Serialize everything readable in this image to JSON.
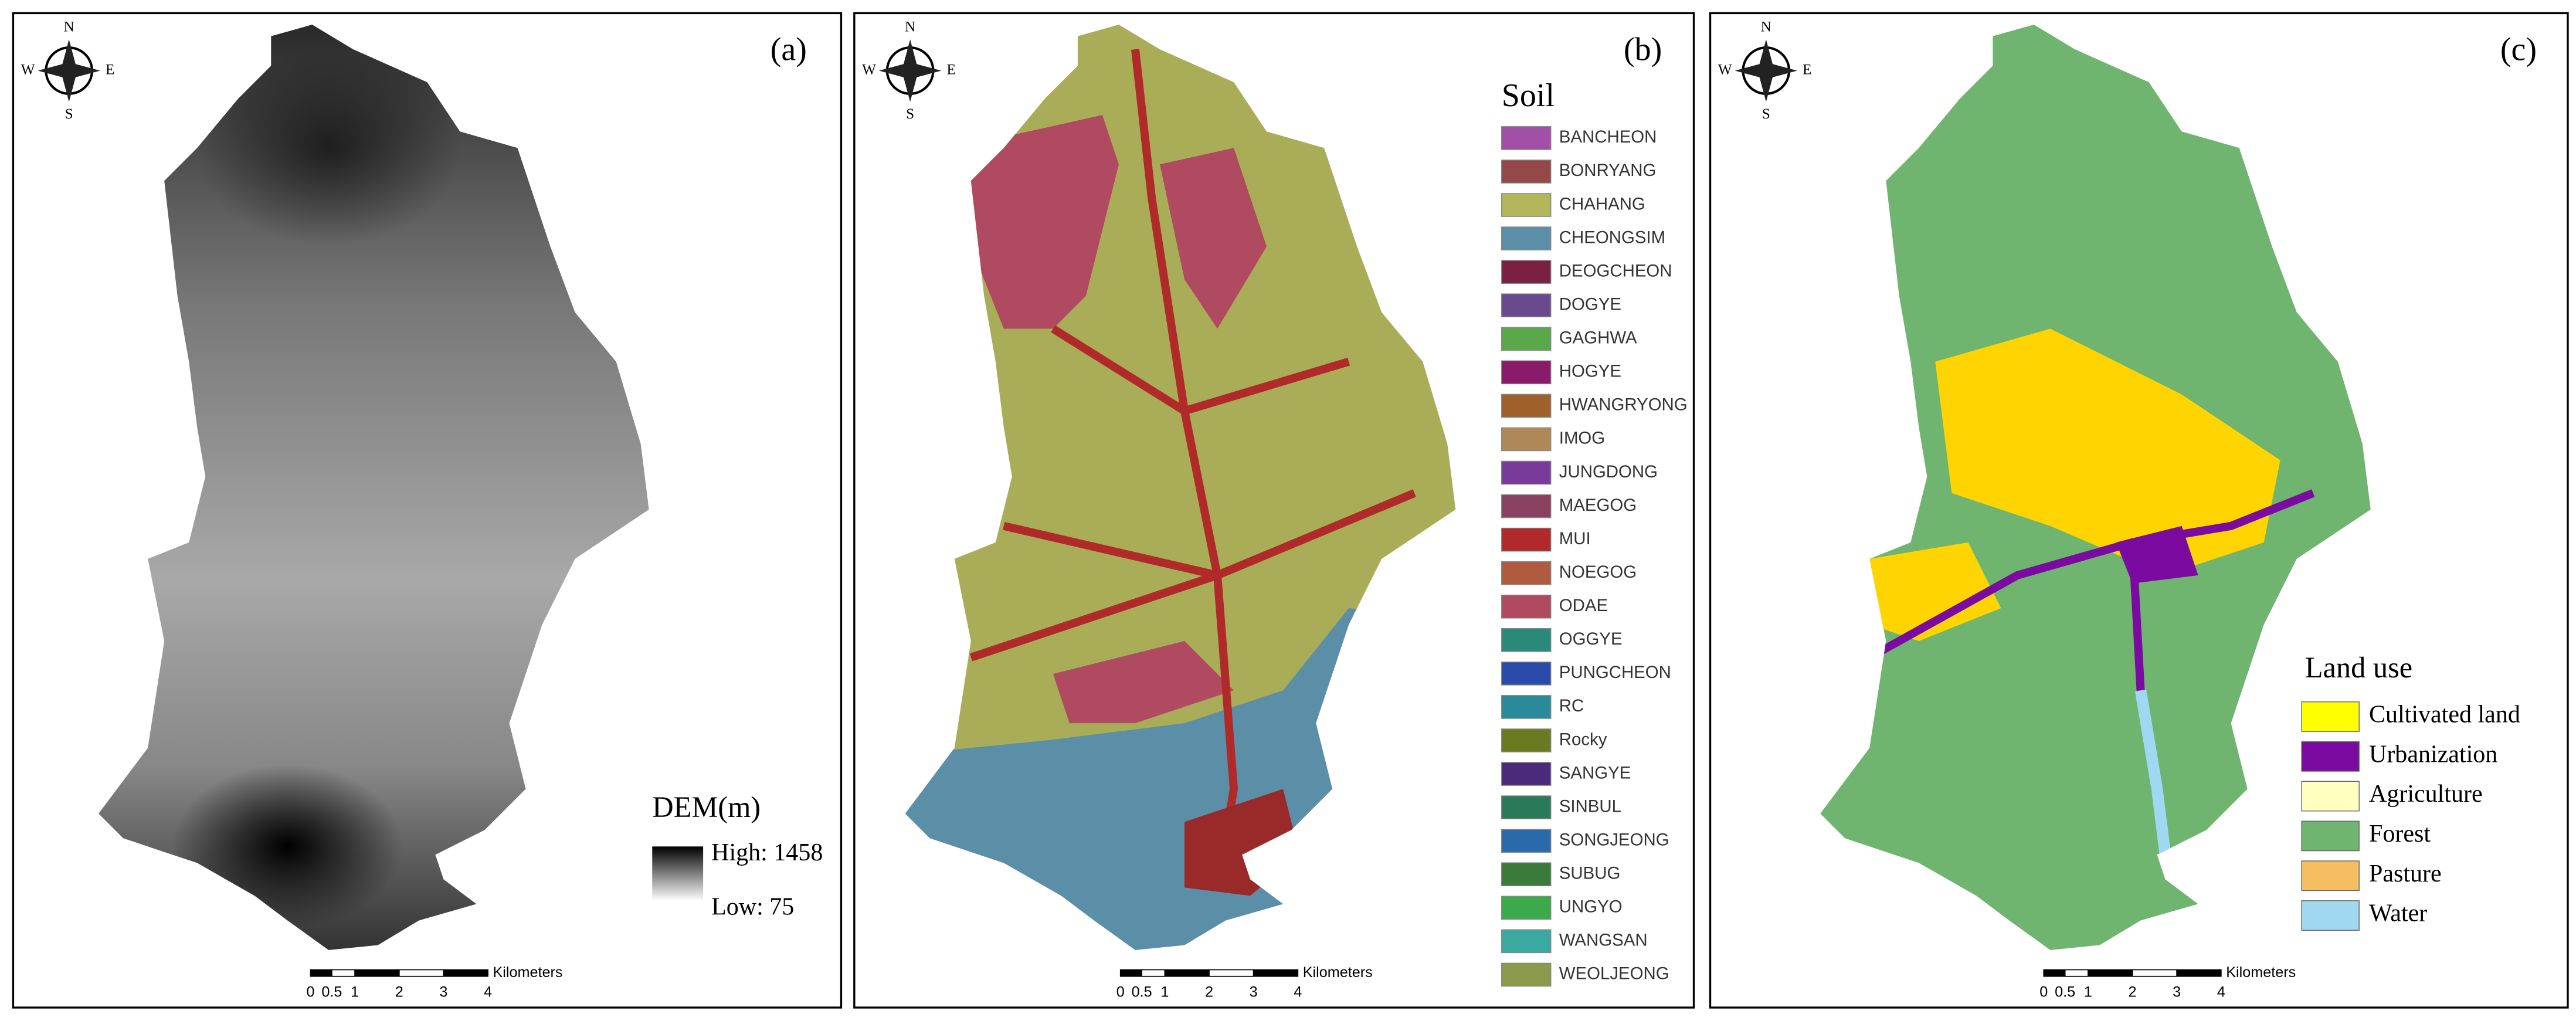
{
  "panels": [
    {
      "label": "(a)",
      "compass": {
        "n": "N",
        "s": "S",
        "e": "E",
        "w": "W"
      },
      "legend": {
        "title": "DEM(m)",
        "high": "High: 1458",
        "low": "Low: 75"
      },
      "scale_bar": {
        "ticks": [
          "0",
          "0.5",
          "1",
          "2",
          "3",
          "4"
        ],
        "unit": "Kilometers"
      }
    },
    {
      "label": "(b)",
      "compass": {
        "n": "N",
        "s": "S",
        "e": "E",
        "w": "W"
      },
      "legend": {
        "title": "Soil",
        "items": [
          {
            "name": "BANCHEON",
            "color": "#a24fa8"
          },
          {
            "name": "BONRYANG",
            "color": "#944848"
          },
          {
            "name": "CHAHANG",
            "color": "#b3b55a"
          },
          {
            "name": "CHEONGSIM",
            "color": "#5b8fa8"
          },
          {
            "name": "DEOGCHEON",
            "color": "#7a2040"
          },
          {
            "name": "DOGYE",
            "color": "#6a4a8e"
          },
          {
            "name": "GAGHWA",
            "color": "#5aa84a"
          },
          {
            "name": "HOGYE",
            "color": "#8a1a6a"
          },
          {
            "name": "HWANGRYONG",
            "color": "#a0602a"
          },
          {
            "name": "IMOG",
            "color": "#b08858"
          },
          {
            "name": "JUNGDONG",
            "color": "#7a3a9a"
          },
          {
            "name": "MAEGOG",
            "color": "#8a4060"
          },
          {
            "name": "MUI",
            "color": "#b02a2a"
          },
          {
            "name": "NOEGOG",
            "color": "#b05a40"
          },
          {
            "name": "ODAE",
            "color": "#b04a60"
          },
          {
            "name": "OGGYE",
            "color": "#2a8a7a"
          },
          {
            "name": "PUNGCHEON",
            "color": "#2a4aaa"
          },
          {
            "name": "RC",
            "color": "#2a8a9a"
          },
          {
            "name": "Rocky",
            "color": "#6a7a20"
          },
          {
            "name": "SANGYE",
            "color": "#4a2a7a"
          },
          {
            "name": "SINBUL",
            "color": "#2a7a5a"
          },
          {
            "name": "SONGJEONG",
            "color": "#2a6aaa"
          },
          {
            "name": "SUBUG",
            "color": "#3a7a3a"
          },
          {
            "name": "UNGYO",
            "color": "#3aaa4a"
          },
          {
            "name": "WANGSAN",
            "color": "#3aaaa0"
          },
          {
            "name": "WEOLJEONG",
            "color": "#8a9a4a"
          }
        ]
      },
      "scale_bar": {
        "ticks": [
          "0",
          "0.5",
          "1",
          "2",
          "3",
          "4"
        ],
        "unit": "Kilometers"
      }
    },
    {
      "label": "(c)",
      "compass": {
        "n": "N",
        "s": "S",
        "e": "E",
        "w": "W"
      },
      "legend": {
        "title": "Land use",
        "items": [
          {
            "name": "Cultivated land",
            "color": "#ffff00"
          },
          {
            "name": "Urbanization",
            "color": "#7a0aa0"
          },
          {
            "name": "Agriculture",
            "color": "#ffffc0"
          },
          {
            "name": "Forest",
            "color": "#6fb56f"
          },
          {
            "name": "Pasture",
            "color": "#f5bf5f"
          },
          {
            "name": "Water",
            "color": "#9fd8f0"
          }
        ]
      },
      "scale_bar": {
        "ticks": [
          "0",
          "0.5",
          "1",
          "2",
          "3",
          "4"
        ],
        "unit": "Kilometers"
      }
    }
  ]
}
